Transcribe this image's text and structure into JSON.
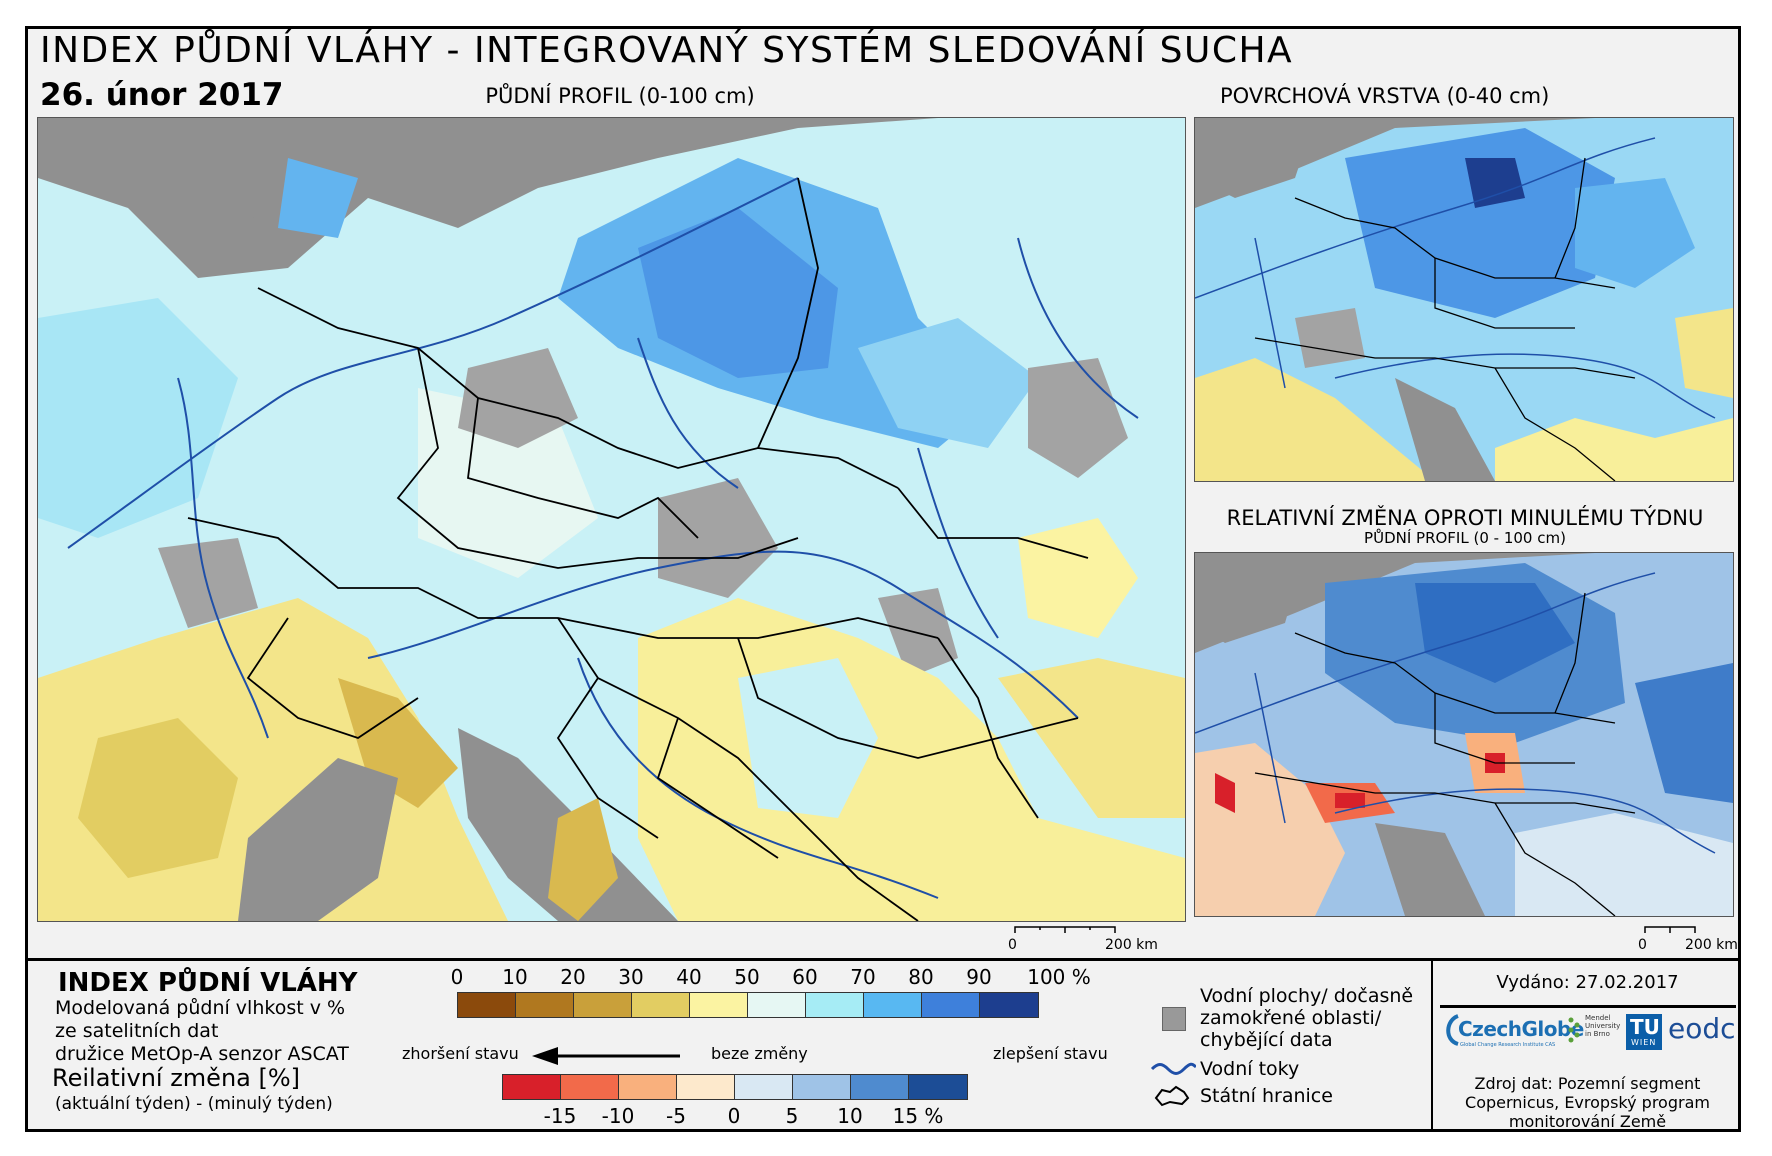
{
  "header": {
    "title": "INDEX PŮDNÍ VLÁHY - INTEGROVANÝ SYSTÉM SLEDOVÁNÍ SUCHA",
    "date": "26. únor 2017"
  },
  "maps": {
    "main_label": "PŮDNÍ PROFIL (0-100 cm)",
    "top_right_label": "POVRCHOVÁ VRSTVA (0-40 cm)",
    "bottom_right_label": "RELATIVNÍ ZMĚNA OPROTI MINULÉMU TÝDNU",
    "bottom_right_sublabel": "PŮDNÍ PROFIL (0 - 100 cm)",
    "scale_main_zero": "0",
    "scale_main_end": "200 km",
    "scale_right_zero": "0",
    "scale_right_end": "200 km"
  },
  "legend": {
    "title": "INDEX PŮDNÍ VLÁHY",
    "desc_line1": "Modelovaná půdní vlhkost v %",
    "desc_line2": "ze satelitních dat",
    "desc_line3": "družice MetOp-A senzor ASCAT",
    "rel_title": "Reilativní změna [%]",
    "rel_sub": "(aktuální týden) - (minulý týden)",
    "moisture_ticks": [
      "0",
      "10",
      "20",
      "30",
      "40",
      "50",
      "60",
      "70",
      "80",
      "90",
      "100 %"
    ],
    "moisture_colors": [
      "#8b4a0c",
      "#b0781f",
      "#c9a03a",
      "#e2cd62",
      "#fbf3a2",
      "#e6f7f3",
      "#a6ecf5",
      "#58b8f2",
      "#3e80db",
      "#1d3e8f"
    ],
    "change_ticks": [
      "-15",
      "-10",
      "-5",
      "0",
      "5",
      "10",
      "15 %"
    ],
    "change_colors": [
      "#d8202a",
      "#f26a4a",
      "#f9b07d",
      "#fde9cc",
      "#d9e8f3",
      "#9fc3e7",
      "#4f8bcf",
      "#1c4d96"
    ],
    "worse": "zhoršení stavu",
    "no_change": "beze změny",
    "better": "zlepšení stavu",
    "water_label_1": "Vodní plochy/ dočasně",
    "water_label_2": "zamokřené oblasti/",
    "water_label_3": "chybějící data",
    "rivers_label": "Vodní toky",
    "borders_label": "Státní hranice",
    "missing_color": "#999999",
    "river_color": "#1f4fa8"
  },
  "footer": {
    "issued": "Vydáno: 27.02.2017",
    "logo_czechglobe": "CzechGlobe",
    "logo_czechglobe_sub": "Global Change Research Institute CAS",
    "logo_mendel": "Mendel University in Brno",
    "logo_tu": "TU",
    "logo_tu_sub": "WIEN",
    "logo_eodc": "eodc",
    "source_line1": "Zdroj dat: Pozemní segment",
    "source_line2": "Copernicus, Evropský program",
    "source_line3": "monitorování Země"
  }
}
